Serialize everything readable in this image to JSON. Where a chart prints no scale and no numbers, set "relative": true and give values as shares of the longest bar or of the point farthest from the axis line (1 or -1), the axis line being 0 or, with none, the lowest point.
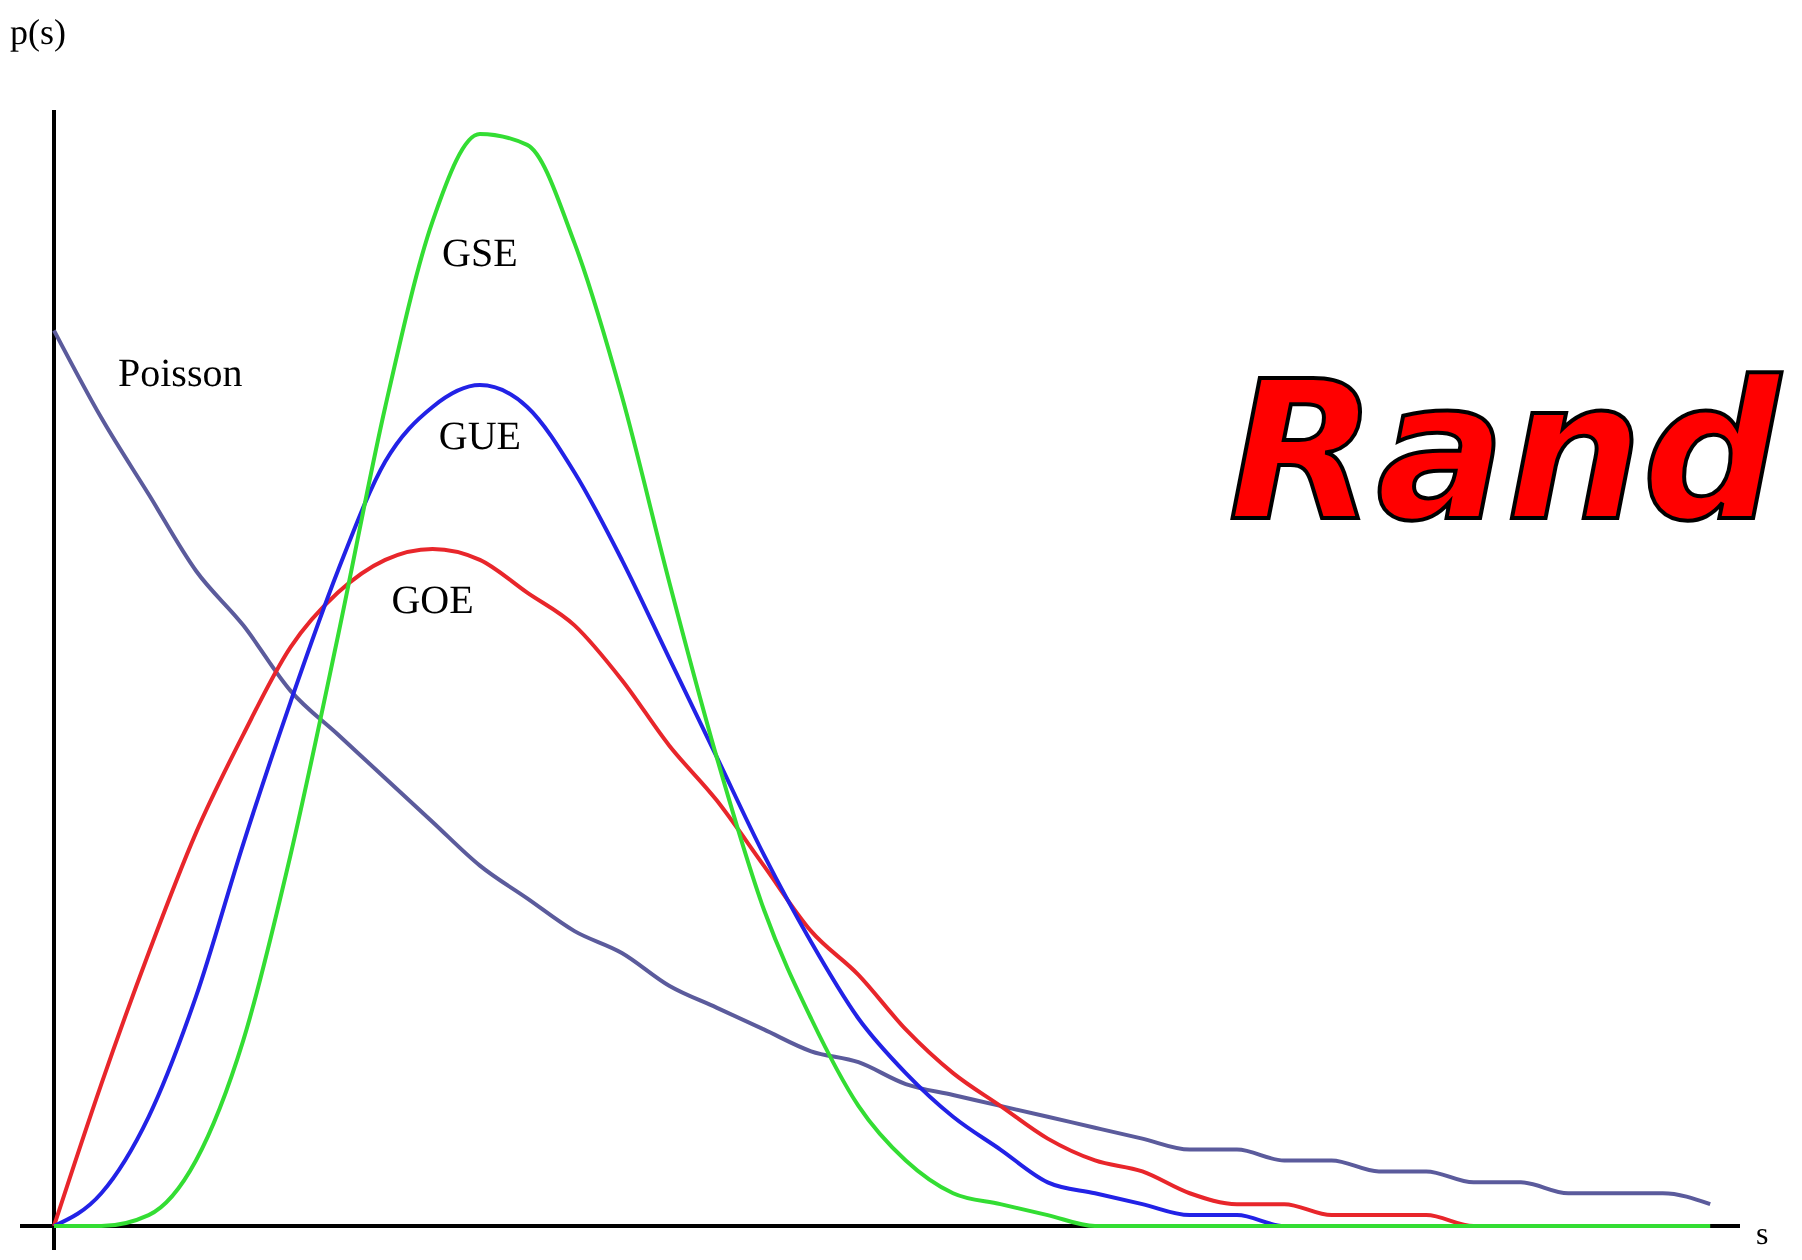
{
  "chart_data": {
    "type": "line",
    "relative": true,
    "xlabel": "s",
    "ylabel": "p(s)",
    "annotations": [
      "Rand"
    ],
    "categories": [
      null,
      null,
      null,
      null,
      null,
      null,
      null,
      null,
      null,
      null,
      null,
      null,
      null,
      null,
      null,
      null,
      null,
      null,
      null,
      null,
      null,
      null,
      null,
      null,
      null,
      null,
      null,
      null,
      null,
      null,
      null,
      null,
      null,
      null,
      null,
      null
    ],
    "series": [
      {
        "name": "Poisson",
        "color": "#5b5b9c",
        "values": [
          0.82,
          0.74,
          0.67,
          0.6,
          0.55,
          0.49,
          0.45,
          0.41,
          0.37,
          0.33,
          0.3,
          0.27,
          0.25,
          0.22,
          0.2,
          0.18,
          0.16,
          0.15,
          0.13,
          0.12,
          0.11,
          0.1,
          0.09,
          0.08,
          0.07,
          0.07,
          0.06,
          0.06,
          0.05,
          0.05,
          0.04,
          0.04,
          0.03,
          0.03,
          0.03,
          0.02
        ]
      },
      {
        "name": "GOE",
        "color": "#e8262b",
        "values": [
          0,
          0.13,
          0.25,
          0.36,
          0.45,
          0.53,
          0.58,
          0.61,
          0.62,
          0.61,
          0.58,
          0.55,
          0.5,
          0.44,
          0.39,
          0.33,
          0.27,
          0.23,
          0.18,
          0.14,
          0.11,
          0.08,
          0.06,
          0.05,
          0.03,
          0.02,
          0.02,
          0.01,
          0.01,
          0.01,
          0,
          0,
          null,
          null,
          null,
          null
        ]
      },
      {
        "name": "GUE",
        "color": "#2222e6",
        "values": [
          0,
          0.03,
          0.1,
          0.21,
          0.35,
          0.48,
          0.6,
          0.7,
          0.75,
          0.77,
          0.75,
          0.69,
          0.61,
          0.52,
          0.43,
          0.34,
          0.26,
          0.19,
          0.14,
          0.1,
          0.07,
          0.04,
          0.03,
          0.02,
          0.01,
          0.01,
          0,
          0,
          null,
          null,
          null,
          null,
          null,
          null,
          null,
          null
        ]
      },
      {
        "name": "GSE",
        "color": "#33dd33",
        "values": [
          0,
          0,
          0.01,
          0.06,
          0.17,
          0.34,
          0.54,
          0.75,
          0.92,
          1.0,
          0.99,
          0.9,
          0.76,
          0.59,
          0.43,
          0.29,
          0.19,
          0.11,
          0.06,
          0.03,
          0.02,
          0.01,
          0,
          0,
          0,
          0,
          0,
          0,
          0,
          0,
          0,
          0,
          0,
          0,
          0,
          0
        ]
      }
    ]
  }
}
